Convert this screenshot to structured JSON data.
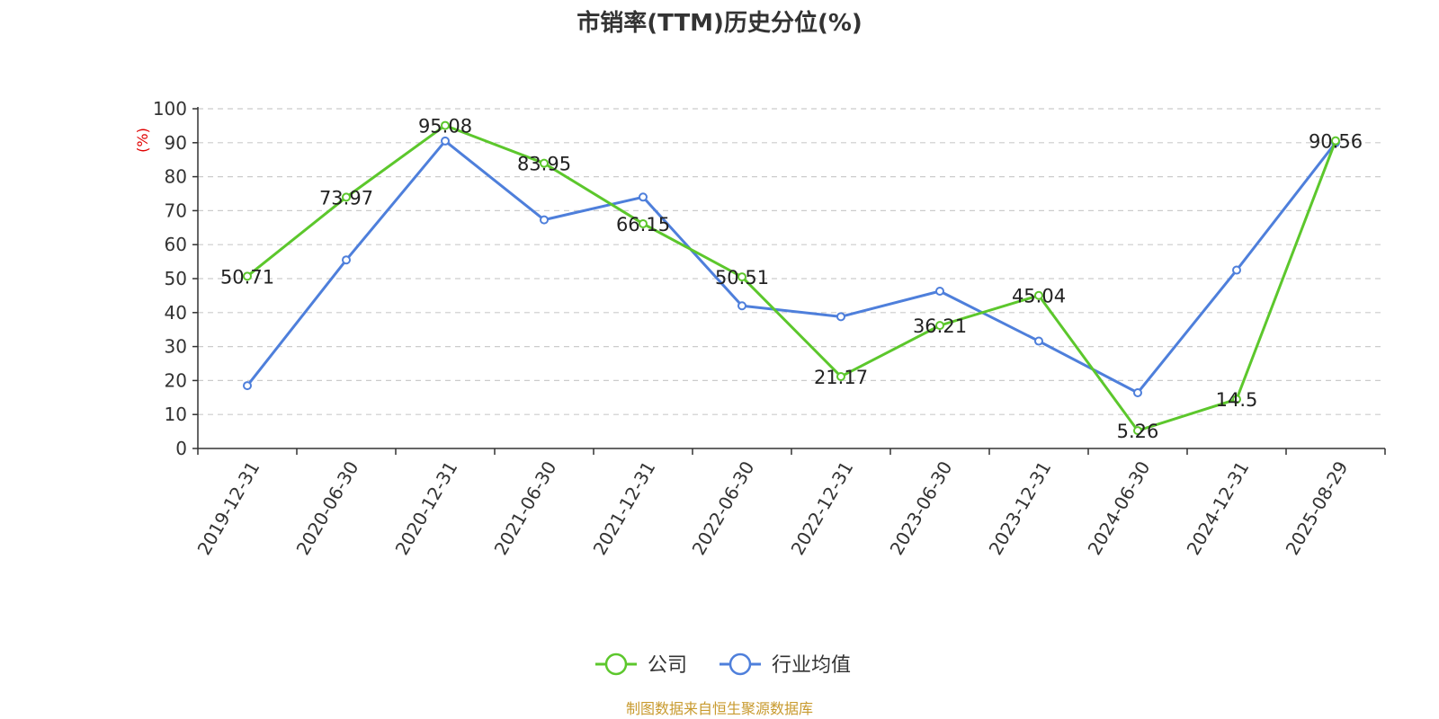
{
  "chart_data": {
    "type": "line",
    "title": "市销率(TTM)历史分位(%)",
    "ylabel": "(%)",
    "xlabel": "",
    "ylim": [
      0,
      100
    ],
    "yticks": [
      0,
      10,
      20,
      30,
      40,
      50,
      60,
      70,
      80,
      90,
      100
    ],
    "grid": true,
    "legend_position": "bottom-center",
    "categories": [
      "2019-12-31",
      "2020-06-30",
      "2020-12-31",
      "2021-06-30",
      "2021-12-31",
      "2022-06-30",
      "2022-12-31",
      "2023-06-30",
      "2023-12-31",
      "2024-06-30",
      "2024-12-31",
      "2025-08-29"
    ],
    "series": [
      {
        "name": "公司",
        "color": "#5cc72c",
        "values": [
          50.71,
          73.97,
          95.08,
          83.95,
          66.15,
          50.51,
          21.17,
          36.21,
          45.04,
          5.26,
          14.5,
          90.56
        ],
        "labels": [
          "50.71",
          "73.97",
          "95.08",
          "83.95",
          "66.15",
          "50.51",
          "21.17",
          "36.21",
          "45.04",
          "5.26",
          "14.5",
          "90.56"
        ]
      },
      {
        "name": "行业均值",
        "color": "#4e7fdb",
        "values": [
          18.5,
          55.5,
          90.5,
          67.3,
          74.0,
          42.0,
          38.8,
          46.3,
          31.6,
          16.4,
          52.5,
          90.0
        ]
      }
    ],
    "source": "制图数据来自恒生聚源数据库",
    "colors": {
      "axis": "#333333",
      "grid": "#cccccc",
      "ylabel": "#e00000",
      "source": "#c89a2e"
    }
  }
}
